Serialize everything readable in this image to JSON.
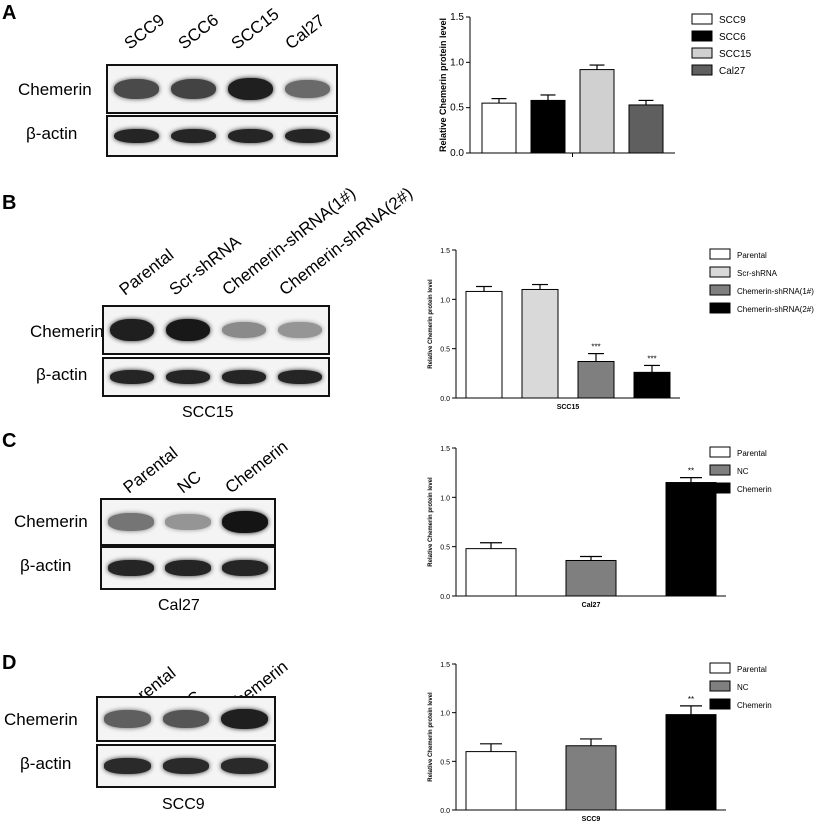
{
  "panels": [
    {
      "letter": "A",
      "lanes": [
        "SCC9",
        "SCC6",
        "SCC15",
        "Cal27"
      ],
      "row_labels": [
        "Chemerin",
        "β-actin"
      ],
      "cell_caption": ""
    },
    {
      "letter": "B",
      "lanes": [
        "Parental",
        "Scr-shRNA",
        "Chemerin-shRNA(1#)",
        "Chemerin-shRNA(2#)"
      ],
      "row_labels": [
        "Chemerin",
        "β-actin"
      ],
      "cell_caption": "SCC15"
    },
    {
      "letter": "C",
      "lanes": [
        "Parental",
        "NC",
        "Chemerin"
      ],
      "row_labels": [
        "Chemerin",
        "β-actin"
      ],
      "cell_caption": "Cal27"
    },
    {
      "letter": "D",
      "lanes": [
        "Parental",
        "NC",
        "Chemerin"
      ],
      "row_labels": [
        "Chemerin",
        "β-actin"
      ],
      "cell_caption": "SCC9"
    }
  ],
  "chart_data": [
    {
      "type": "bar",
      "title": "",
      "xlabel": "",
      "ylabel": "Relative Chemerin protein level",
      "ylim": [
        0,
        1.5
      ],
      "yticks": [
        "0.0",
        "0.5",
        "1.0",
        "1.5"
      ],
      "categories": [
        "SCC9",
        "SCC6",
        "SCC15",
        "Cal27"
      ],
      "values": [
        0.55,
        0.58,
        0.92,
        0.53
      ],
      "errors": [
        0.05,
        0.06,
        0.05,
        0.05
      ],
      "colors": [
        "#ffffff",
        "#000000",
        "#d0d0d0",
        "#5f5f5f"
      ],
      "annotations": [
        "",
        "",
        "",
        ""
      ],
      "legend": [
        "SCC9",
        "SCC6",
        "SCC15",
        "Cal27"
      ],
      "legend_position": "right"
    },
    {
      "type": "bar",
      "title": "",
      "xlabel": "SCC15",
      "ylabel": "Relative Chemerin protein level",
      "ylim": [
        0,
        1.5
      ],
      "yticks": [
        "0.0",
        "0.5",
        "1.0",
        "1.5"
      ],
      "categories": [
        "Parental",
        "Scr-shRNA",
        "Chemerin-shRNA(1#)",
        "Chemerin-shRNA(2#)"
      ],
      "values": [
        1.08,
        1.1,
        0.37,
        0.26
      ],
      "errors": [
        0.05,
        0.05,
        0.08,
        0.07
      ],
      "colors": [
        "#ffffff",
        "#d9d9d9",
        "#7f7f7f",
        "#000000"
      ],
      "annotations": [
        "",
        "",
        "***",
        "***"
      ],
      "legend": [
        "Parental",
        "Scr-shRNA",
        "Chemerin-shRNA(1#)",
        "Chemerin-shRNA(2#)"
      ],
      "legend_position": "right"
    },
    {
      "type": "bar",
      "title": "",
      "xlabel": "Cal27",
      "ylabel": "Relative Chemerin protein level",
      "ylim": [
        0,
        1.5
      ],
      "yticks": [
        "0.0",
        "0.5",
        "1.0",
        "1.5"
      ],
      "categories": [
        "Parental",
        "NC",
        "Chemerin"
      ],
      "values": [
        0.48,
        0.36,
        1.15
      ],
      "errors": [
        0.06,
        0.04,
        0.05
      ],
      "colors": [
        "#ffffff",
        "#7f7f7f",
        "#000000"
      ],
      "annotations": [
        "",
        "",
        "**"
      ],
      "legend": [
        "Parental",
        "NC",
        "Chemerin"
      ],
      "legend_position": "right"
    },
    {
      "type": "bar",
      "title": "",
      "xlabel": "SCC9",
      "ylabel": "Relative Chemerin protein level",
      "ylim": [
        0,
        1.5
      ],
      "yticks": [
        "0.0",
        "0.5",
        "1.0",
        "1.5"
      ],
      "categories": [
        "Parental",
        "NC",
        "Chemerin"
      ],
      "values": [
        0.6,
        0.66,
        0.98
      ],
      "errors": [
        0.08,
        0.07,
        0.09
      ],
      "colors": [
        "#ffffff",
        "#7f7f7f",
        "#000000"
      ],
      "annotations": [
        "",
        "",
        "**"
      ],
      "legend": [
        "Parental",
        "NC",
        "Chemerin"
      ],
      "legend_position": "right"
    }
  ],
  "band_intensity": [
    {
      "target": [
        0.75,
        0.78,
        0.95,
        0.6
      ],
      "actin": [
        0.92,
        0.92,
        0.92,
        0.92
      ]
    },
    {
      "target": [
        0.95,
        0.98,
        0.45,
        0.4
      ],
      "actin": [
        0.92,
        0.92,
        0.92,
        0.92
      ]
    },
    {
      "target": [
        0.55,
        0.4,
        1.0
      ],
      "actin": [
        0.92,
        0.92,
        0.92
      ]
    },
    {
      "target": [
        0.65,
        0.7,
        0.95
      ],
      "actin": [
        0.9,
        0.9,
        0.9
      ]
    }
  ]
}
